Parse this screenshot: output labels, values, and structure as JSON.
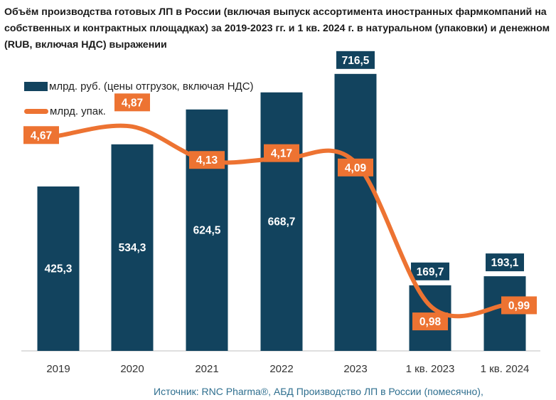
{
  "title": "Объём производства готовых ЛП в России (включая выпуск ассортимента иностранных фармкомпаний на собственных и контрактных площадках) за 2019-2023 гг. и 1 кв. 2024 г. в натуральном (упаковки) и денежном (RUB, включая НДС) выражении",
  "source": "Источник: RNC Pharma®, АБД Производство ЛП в России (помесячно),",
  "colors": {
    "bar": "#12435e",
    "line": "#ed7332",
    "label_box": "#ed7332",
    "axis": "#bfbfbf",
    "text": "#333333"
  },
  "chart_data": {
    "type": "bar+line",
    "categories": [
      "2019",
      "2020",
      "2021",
      "2022",
      "2023",
      "1 кв. 2023",
      "1 кв. 2024"
    ],
    "series": [
      {
        "name": "млрд. руб. (цены отгрузок, включая НДС)",
        "type": "bar",
        "values": [
          425.3,
          534.3,
          624.5,
          668.7,
          716.5,
          169.7,
          193.1
        ],
        "labels": [
          "425,3",
          "534,3",
          "624,5",
          "668,7",
          "716,5",
          "169,7",
          "193,1"
        ]
      },
      {
        "name": "млрд. упак.",
        "type": "line",
        "values": [
          4.67,
          4.87,
          4.13,
          4.17,
          4.09,
          0.98,
          0.99
        ],
        "labels": [
          "4,67",
          "4,87",
          "4,13",
          "4,17",
          "4,09",
          "0,98",
          "0,99"
        ]
      }
    ],
    "bar_axis_range": [
      0,
      834
    ],
    "line_axis_range": [
      0,
      7.0
    ]
  }
}
